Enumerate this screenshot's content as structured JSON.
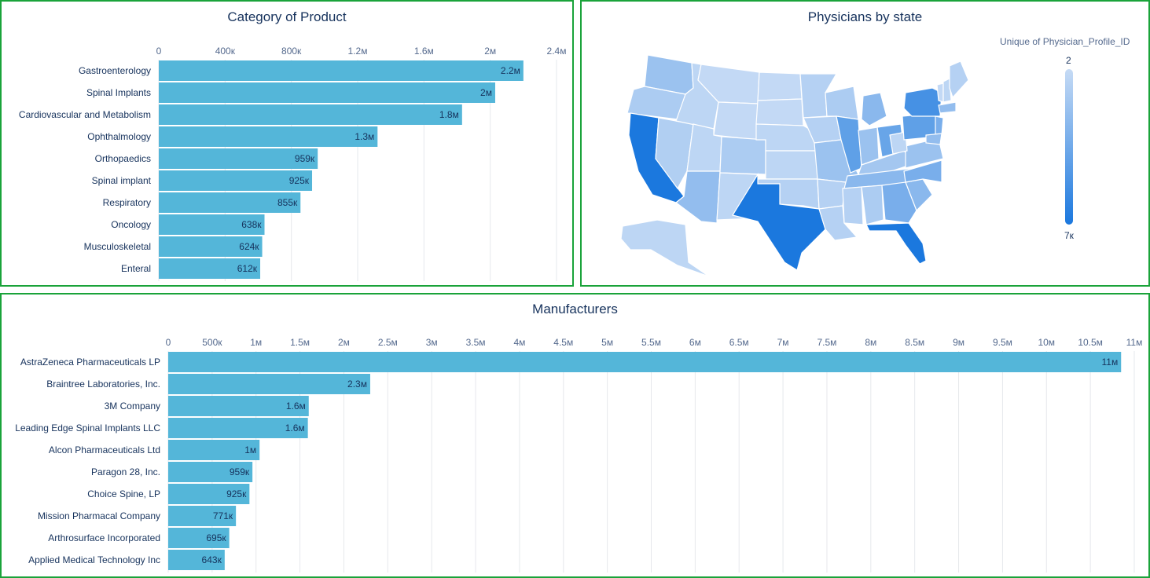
{
  "colors": {
    "bar": "#54b6d9",
    "border": "#1aa33a",
    "grid": "#e6e8ec",
    "map_low": "#c6dbf5",
    "map_high": "#1b78de"
  },
  "category_panel": {
    "title": "Category of Product"
  },
  "map_panel": {
    "title": "Physicians by state",
    "legend_title": "Unique of Physician_Profile_ID",
    "legend_min": "2",
    "legend_max": "7к"
  },
  "manufacturers_panel": {
    "title": "Manufacturers"
  },
  "chart_data": [
    {
      "type": "bar",
      "orientation": "horizontal",
      "title": "Category of Product",
      "categories": [
        "Gastroenterology",
        "Spinal Implants",
        "Cardiovascular and Metabolism",
        "Ophthalmology",
        "Orthopaedics",
        "Spinal implant",
        "Respiratory",
        "Oncology",
        "Musculoskeletal",
        "Enteral"
      ],
      "values": [
        2200000,
        2030000,
        1830000,
        1320000,
        959000,
        925000,
        855000,
        638000,
        624000,
        612000
      ],
      "data_labels": [
        "2.2м",
        "2м",
        "1.8м",
        "1.3м",
        "959к",
        "925к",
        "855к",
        "638к",
        "624к",
        "612к"
      ],
      "xlim": [
        0,
        2400000
      ],
      "xticks": [
        0,
        400000,
        800000,
        1200000,
        1600000,
        2000000,
        2400000
      ],
      "xtick_labels": [
        "0",
        "400к",
        "800к",
        "1.2м",
        "1.6м",
        "2м",
        "2.4м"
      ],
      "axis_position": "top",
      "grid": true
    },
    {
      "type": "heatmap",
      "subtype": "choropleth",
      "title": "Physicians by state",
      "legend_title": "Unique of Physician_Profile_ID",
      "range": [
        2,
        7000
      ],
      "range_labels": [
        "2",
        "7к"
      ],
      "regions": [
        "Washington",
        "Oregon",
        "California",
        "Nevada",
        "Idaho",
        "Montana",
        "Wyoming",
        "Utah",
        "Arizona",
        "Colorado",
        "New Mexico",
        "North Dakota",
        "South Dakota",
        "Nebraska",
        "Kansas",
        "Oklahoma",
        "Texas",
        "Minnesota",
        "Iowa",
        "Missouri",
        "Arkansas",
        "Louisiana",
        "Wisconsin",
        "Illinois",
        "Michigan",
        "Indiana",
        "Ohio",
        "Kentucky",
        "Tennessee",
        "Mississippi",
        "Alabama",
        "Georgia",
        "Florida",
        "South Carolina",
        "North Carolina",
        "Virginia",
        "West Virginia",
        "Pennsylvania",
        "New York",
        "Vermont",
        "New Hampshire",
        "Maine",
        "Massachusetts",
        "New Jersey",
        "Maryland",
        "Alaska"
      ],
      "levels": [
        0.25,
        0.15,
        1.0,
        0.12,
        0.05,
        0.02,
        0.02,
        0.05,
        0.3,
        0.15,
        0.05,
        0.02,
        0.02,
        0.05,
        0.05,
        0.1,
        1.0,
        0.1,
        0.1,
        0.25,
        0.1,
        0.1,
        0.15,
        0.6,
        0.35,
        0.25,
        0.55,
        0.2,
        0.35,
        0.1,
        0.15,
        0.45,
        1.0,
        0.35,
        0.45,
        0.25,
        0.05,
        0.6,
        0.75,
        0.02,
        0.05,
        0.1,
        0.3,
        0.45,
        0.3,
        0.05
      ]
    },
    {
      "type": "bar",
      "orientation": "horizontal",
      "title": "Manufacturers",
      "categories": [
        "AstraZeneca Pharmaceuticals LP",
        "Braintree Laboratories, Inc.",
        "3M Company",
        "Leading Edge Spinal Implants LLC",
        "Alcon Pharmaceuticals Ltd",
        "Paragon 28, Inc.",
        "Choice Spine, LP",
        "Mission Pharmacal Company",
        "Arthrosurface Incorporated",
        "Applied Medical Technology Inc"
      ],
      "values": [
        10850000,
        2300000,
        1600000,
        1590000,
        1040000,
        959000,
        925000,
        771000,
        695000,
        643000
      ],
      "data_labels": [
        "11м",
        "2.3м",
        "1.6м",
        "1.6м",
        "1м",
        "959к",
        "925к",
        "771к",
        "695к",
        "643к"
      ],
      "xlim": [
        0,
        11000000
      ],
      "xticks": [
        0,
        500000,
        1000000,
        1500000,
        2000000,
        2500000,
        3000000,
        3500000,
        4000000,
        4500000,
        5000000,
        5500000,
        6000000,
        6500000,
        7000000,
        7500000,
        8000000,
        8500000,
        9000000,
        9500000,
        10000000,
        10500000,
        11000000
      ],
      "xtick_labels": [
        "0",
        "500к",
        "1м",
        "1.5м",
        "2м",
        "2.5м",
        "3м",
        "3.5м",
        "4м",
        "4.5м",
        "5м",
        "5.5м",
        "6м",
        "6.5м",
        "7м",
        "7.5м",
        "8м",
        "8.5м",
        "9м",
        "9.5м",
        "10м",
        "10.5м",
        "11м"
      ],
      "axis_position": "top",
      "grid": true
    }
  ]
}
